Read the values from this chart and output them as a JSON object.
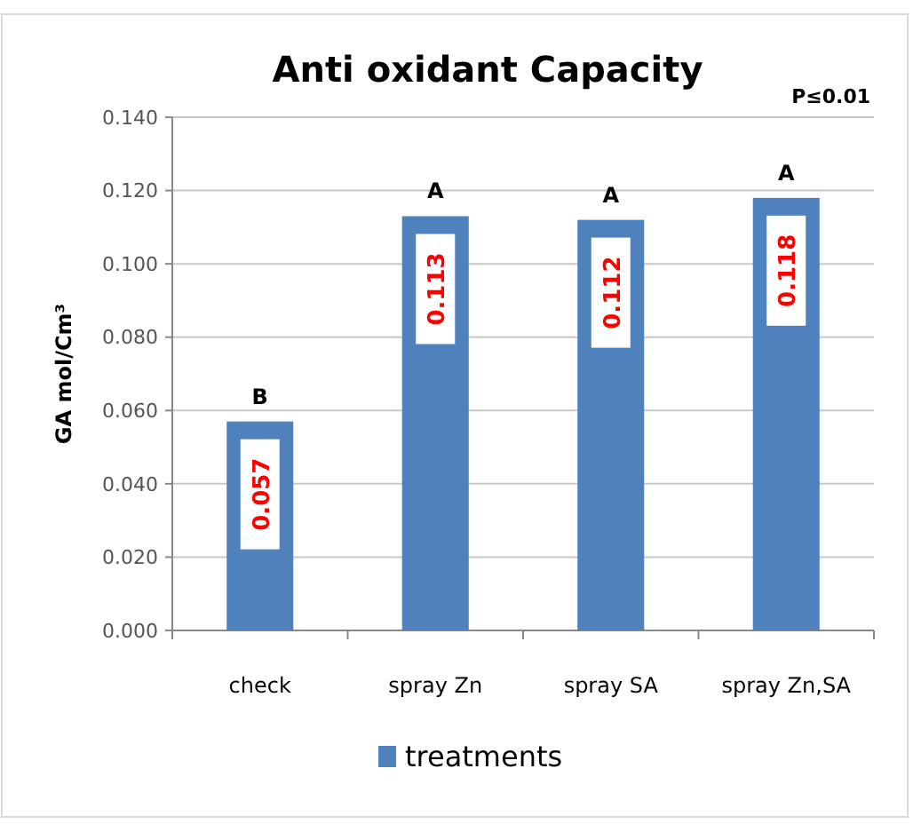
{
  "chart_data": {
    "type": "bar",
    "title": "Anti oxidant Capacity",
    "ylabel": "GA mol/Cm³",
    "categories": [
      "check",
      "spray Zn",
      "spray SA",
      "spray Zn,SA"
    ],
    "series": [
      {
        "name": "treatments",
        "color": "#4f81bd",
        "values": [
          0.057,
          0.113,
          0.112,
          0.118
        ]
      }
    ],
    "ylim": [
      0,
      0.14
    ],
    "yticks": [
      {
        "value": 0,
        "label": "0.000"
      },
      {
        "value": 0.02,
        "label": "0.020"
      },
      {
        "value": 0.04,
        "label": "0.040"
      },
      {
        "value": 0.06,
        "label": "0.060"
      },
      {
        "value": 0.08,
        "label": "0.080"
      },
      {
        "value": 0.1,
        "label": "0.100"
      },
      {
        "value": 0.12,
        "label": "0.120"
      },
      {
        "value": 0.14,
        "label": "0.140"
      }
    ],
    "grid": "y",
    "legend": "bottom",
    "data_labels": true,
    "annotations": [
      {
        "text": "B",
        "x": "check",
        "y": 0.057
      },
      {
        "text": "A",
        "x": "spray Zn",
        "y": 0.113
      },
      {
        "text": "A",
        "x": "spray SA",
        "y": 0.112
      },
      {
        "text": "A",
        "x": "spray Zn,SA",
        "y": 0.118
      },
      "P≤0.01"
    ]
  }
}
